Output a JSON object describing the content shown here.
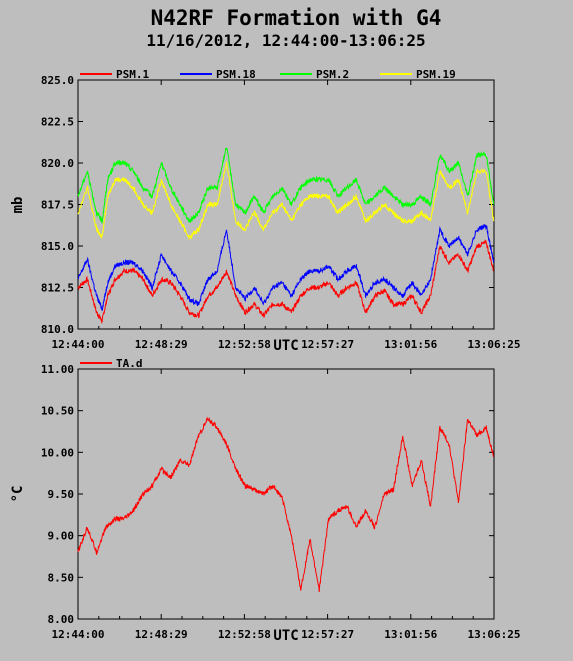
{
  "figure": {
    "title": "N42RF Formation with G4",
    "subtitle": "11/16/2012, 12:44:00-13:06:25",
    "background": "#bebebe"
  },
  "chart_data": [
    {
      "type": "line",
      "xlabel": "UTC",
      "ylabel": "mb",
      "ylim": [
        810.0,
        825.0
      ],
      "yticks": [
        "810.0",
        "812.5",
        "815.0",
        "817.5",
        "820.0",
        "822.5",
        "825.0"
      ],
      "xticks": [
        "12:44:00",
        "12:48:29",
        "12:52:58",
        "12:57:27",
        "13:01:56",
        "13:06:25"
      ],
      "x_range_minutes": [
        0,
        22.4167
      ],
      "legend_position": "top",
      "series": [
        {
          "name": "PSM.1",
          "color": "#ff0000",
          "x": [
            0,
            0.5,
            1,
            1.3,
            1.6,
            2,
            2.5,
            3,
            3.5,
            4,
            4.5,
            5,
            5.5,
            6,
            6.5,
            7,
            7.5,
            8,
            8.5,
            9,
            9.5,
            10,
            10.5,
            11,
            11.5,
            12,
            12.5,
            13,
            13.5,
            14,
            14.5,
            15,
            15.5,
            16,
            16.5,
            17,
            17.5,
            18,
            18.5,
            19,
            19.5,
            20,
            20.5,
            21,
            21.5,
            22,
            22.4
          ],
          "y": [
            812.5,
            813.0,
            811.0,
            810.5,
            812.0,
            813.0,
            813.5,
            813.5,
            813.0,
            812.0,
            813.0,
            812.8,
            812.0,
            811.0,
            810.8,
            812.0,
            812.5,
            813.5,
            812.0,
            811.0,
            811.5,
            810.8,
            811.5,
            811.5,
            811.0,
            812.0,
            812.5,
            812.5,
            812.8,
            812.0,
            812.5,
            812.8,
            811.0,
            812.0,
            812.3,
            811.5,
            811.5,
            812.0,
            811.0,
            812.0,
            815.0,
            814.0,
            814.5,
            813.5,
            815.0,
            815.2,
            813.5
          ]
        },
        {
          "name": "PSM.18",
          "color": "#0000ff",
          "x": [
            0,
            0.5,
            1,
            1.3,
            1.6,
            2,
            2.5,
            3,
            3.5,
            4,
            4.5,
            5,
            5.5,
            6,
            6.5,
            7,
            7.5,
            8,
            8.5,
            9,
            9.5,
            10,
            10.5,
            11,
            11.5,
            12,
            12.5,
            13,
            13.5,
            14,
            14.5,
            15,
            15.5,
            16,
            16.5,
            17,
            17.5,
            18,
            18.5,
            19,
            19.5,
            20,
            20.5,
            21,
            21.5,
            22,
            22.4
          ],
          "y": [
            813.0,
            814.2,
            812.0,
            811.2,
            812.8,
            813.8,
            814.0,
            814.0,
            813.5,
            812.5,
            814.5,
            813.5,
            812.8,
            811.8,
            811.5,
            813.0,
            813.5,
            816.0,
            812.5,
            811.8,
            812.5,
            811.5,
            812.5,
            812.8,
            812.0,
            813.0,
            813.5,
            813.5,
            813.8,
            813.0,
            813.5,
            813.8,
            812.0,
            812.8,
            813.0,
            812.5,
            812.0,
            812.8,
            812.0,
            813.0,
            816.0,
            815.0,
            815.5,
            814.5,
            816.0,
            816.2,
            814.0
          ]
        },
        {
          "name": "PSM.2",
          "color": "#00ff00",
          "x": [
            0,
            0.5,
            1,
            1.3,
            1.6,
            2,
            2.5,
            3,
            3.5,
            4,
            4.5,
            5,
            5.5,
            6,
            6.5,
            7,
            7.5,
            8,
            8.5,
            9,
            9.5,
            10,
            10.5,
            11,
            11.5,
            12,
            12.5,
            13,
            13.5,
            14,
            14.5,
            15,
            15.5,
            16,
            16.5,
            17,
            17.5,
            18,
            18.5,
            19,
            19.5,
            20,
            20.5,
            21,
            21.5,
            22,
            22.4
          ],
          "y": [
            818.0,
            819.5,
            817.0,
            816.5,
            819.0,
            820.0,
            820.0,
            819.5,
            818.5,
            818.0,
            820.0,
            818.5,
            817.5,
            816.5,
            817.0,
            818.5,
            818.5,
            821.0,
            817.5,
            817.0,
            818.0,
            817.0,
            818.0,
            818.5,
            817.5,
            818.5,
            819.0,
            819.0,
            819.0,
            818.0,
            818.5,
            819.0,
            817.5,
            818.0,
            818.5,
            818.0,
            817.5,
            817.5,
            818.0,
            817.5,
            820.5,
            819.5,
            820.0,
            818.0,
            820.5,
            820.5,
            817.5
          ]
        },
        {
          "name": "PSM.19",
          "color": "#ffff00",
          "x": [
            0,
            0.5,
            1,
            1.3,
            1.6,
            2,
            2.5,
            3,
            3.5,
            4,
            4.5,
            5,
            5.5,
            6,
            6.5,
            7,
            7.5,
            8,
            8.5,
            9,
            9.5,
            10,
            10.5,
            11,
            11.5,
            12,
            12.5,
            13,
            13.5,
            14,
            14.5,
            15,
            15.5,
            16,
            16.5,
            17,
            17.5,
            18,
            18.5,
            19,
            19.5,
            20,
            20.5,
            21,
            21.5,
            22,
            22.4
          ],
          "y": [
            817.0,
            818.5,
            816.0,
            815.5,
            818.0,
            819.0,
            819.0,
            818.5,
            817.5,
            817.0,
            819.0,
            817.5,
            816.5,
            815.5,
            816.0,
            817.5,
            817.5,
            820.0,
            816.5,
            816.0,
            817.0,
            816.0,
            817.0,
            817.5,
            816.5,
            817.5,
            818.0,
            818.0,
            818.0,
            817.0,
            817.5,
            818.0,
            816.5,
            817.0,
            817.5,
            817.0,
            816.5,
            816.5,
            817.0,
            816.5,
            819.5,
            818.5,
            819.0,
            817.0,
            819.5,
            819.5,
            816.5
          ]
        }
      ]
    },
    {
      "type": "line",
      "xlabel": "UTC",
      "ylabel": "°C",
      "ylim": [
        8.0,
        11.0
      ],
      "yticks": [
        "8.00",
        "8.50",
        "9.00",
        "9.50",
        "10.00",
        "10.50",
        "11.00"
      ],
      "xticks": [
        "12:44:00",
        "12:48:29",
        "12:52:58",
        "12:57:27",
        "13:01:56",
        "13:06:25"
      ],
      "x_range_minutes": [
        0,
        22.4167
      ],
      "legend_position": "top-left",
      "series": [
        {
          "name": "TA.d",
          "color": "#ff0000",
          "x": [
            0,
            0.5,
            1,
            1.5,
            2,
            2.5,
            3,
            3.5,
            4,
            4.5,
            5,
            5.5,
            6,
            6.5,
            7,
            7.5,
            8,
            8.5,
            9,
            9.5,
            10,
            10.5,
            11,
            11.5,
            12,
            12.5,
            13,
            13.5,
            14,
            14.5,
            15,
            15.5,
            16,
            16.5,
            17,
            17.5,
            18,
            18.5,
            19,
            19.5,
            20,
            20.5,
            21,
            21.5,
            22,
            22.4
          ],
          "y": [
            8.8,
            9.1,
            8.8,
            9.1,
            9.2,
            9.2,
            9.3,
            9.5,
            9.6,
            9.8,
            9.7,
            9.9,
            9.85,
            10.2,
            10.4,
            10.3,
            10.1,
            9.8,
            9.6,
            9.55,
            9.5,
            9.6,
            9.45,
            9.0,
            8.35,
            8.95,
            8.35,
            9.2,
            9.3,
            9.35,
            9.1,
            9.3,
            9.1,
            9.5,
            9.55,
            10.2,
            9.6,
            9.9,
            9.35,
            10.3,
            10.1,
            9.4,
            10.4,
            10.2,
            10.3,
            9.95
          ]
        }
      ]
    }
  ]
}
